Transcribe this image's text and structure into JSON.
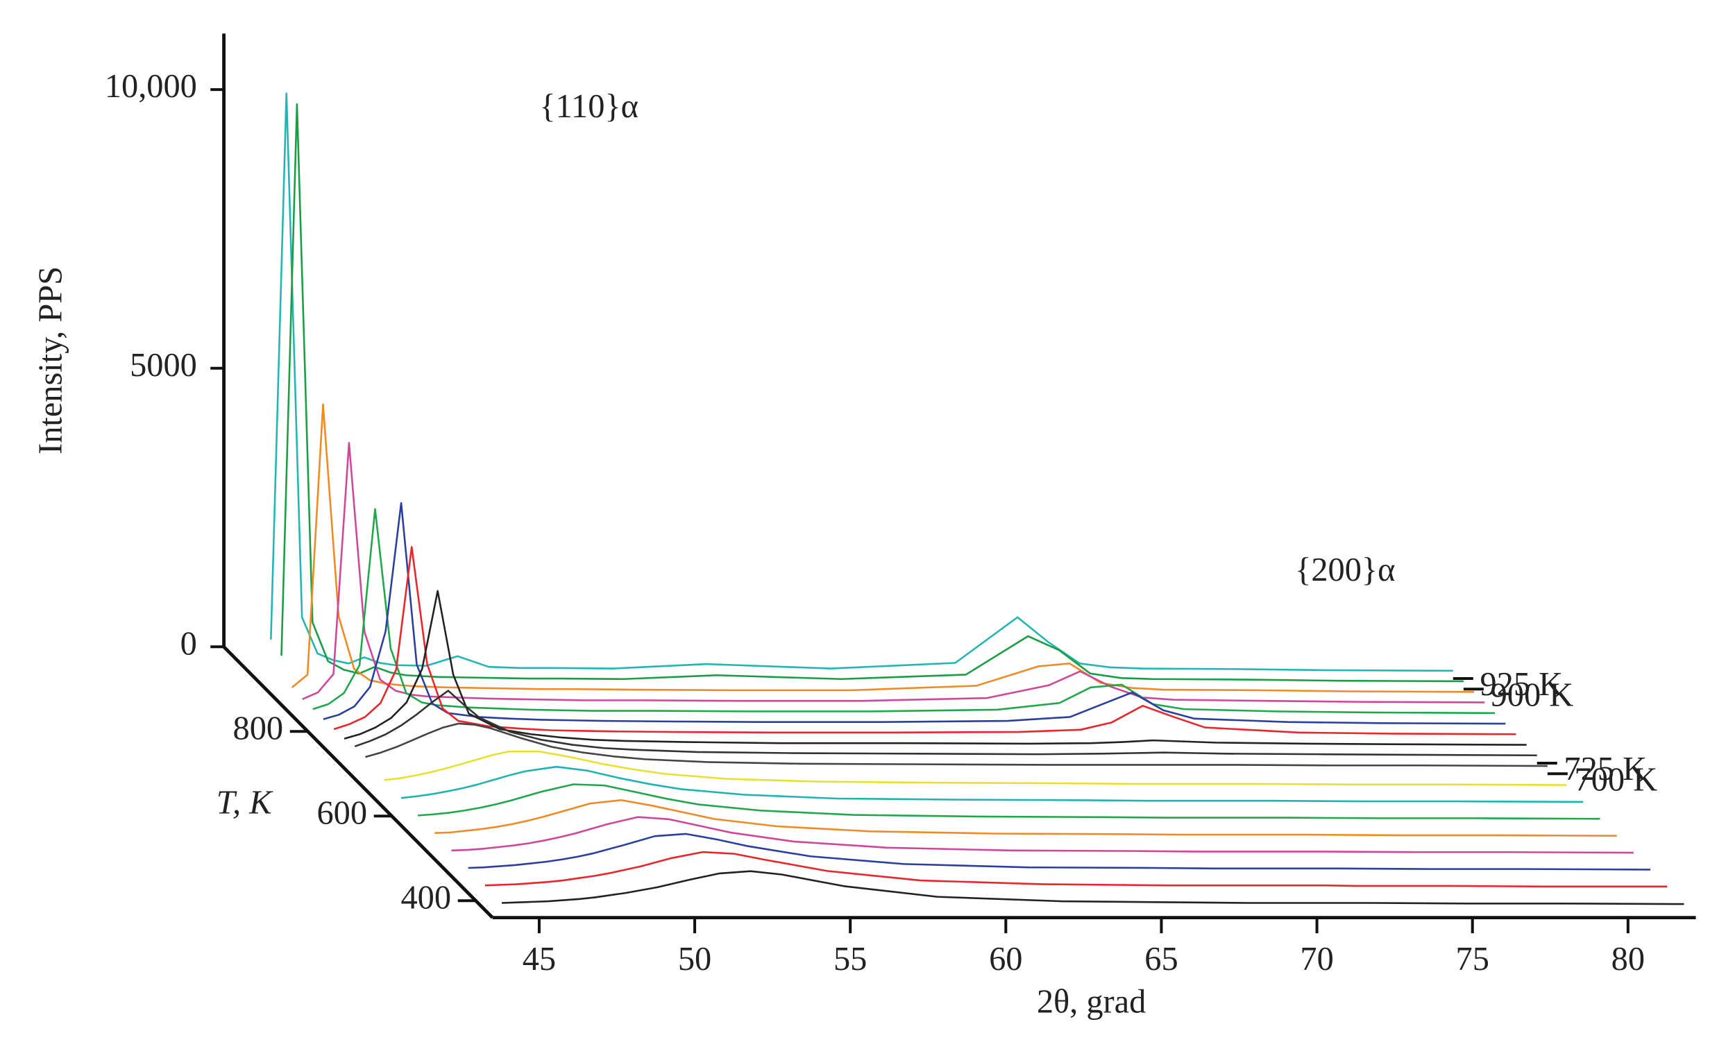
{
  "chart_data": {
    "type": "waterfall",
    "ylabel": "Intensity, PPS",
    "xlabel": "2θ, grad",
    "zlabel": "T, K",
    "annotations": [
      "{110}α",
      "{200}α"
    ],
    "xlim": [
      43.5,
      82
    ],
    "xticks": [
      45,
      50,
      55,
      60,
      65,
      70,
      75,
      80
    ],
    "ylim": [
      0,
      10800
    ],
    "yticks": [
      0,
      5000,
      {
        "value": 10000,
        "label": "10,000"
      }
    ],
    "zlim": [
      360,
      1000
    ],
    "zticks": [
      400,
      600,
      800
    ],
    "x": [
      44,
      44.5,
      45,
      45.5,
      46,
      46.5,
      47,
      47.5,
      48,
      49,
      50,
      51,
      52,
      53,
      55,
      58,
      62,
      66,
      68,
      69,
      70,
      71,
      72,
      75,
      78,
      82
    ],
    "series": [
      {
        "z": 925,
        "name": "925 K",
        "color": "#22b5b5",
        "values": [
          700,
          10500,
          1100,
          450,
          330,
          270,
          380,
          280,
          240,
          230,
          400,
          210,
          190,
          190,
          180,
          260,
          180,
          280,
          1100,
          650,
          270,
          200,
          180,
          170,
          150,
          140
        ]
      },
      {
        "z": 900,
        "name": "900 K",
        "color": "#1a9e45",
        "values": [
          600,
          10500,
          1200,
          500,
          350,
          280,
          400,
          300,
          250,
          220,
          210,
          200,
          190,
          190,
          180,
          250,
          180,
          260,
          950,
          700,
          280,
          200,
          180,
          170,
          150,
          140
        ]
      },
      {
        "z": 875,
        "color": "#f08a24",
        "values": [
          220,
          450,
          5300,
          1500,
          550,
          350,
          290,
          260,
          240,
          220,
          210,
          200,
          190,
          190,
          180,
          170,
          170,
          250,
          600,
          650,
          300,
          210,
          180,
          170,
          150,
          140
        ]
      },
      {
        "z": 850,
        "color": "#d0479a",
        "values": [
          200,
          320,
          650,
          4800,
          1400,
          550,
          350,
          280,
          250,
          230,
          210,
          200,
          190,
          180,
          180,
          170,
          170,
          220,
          450,
          700,
          420,
          230,
          190,
          170,
          150,
          140
        ]
      },
      {
        "z": 825,
        "color": "#1fa84a",
        "values": [
          210,
          300,
          500,
          1000,
          3800,
          1300,
          500,
          330,
          280,
          240,
          220,
          200,
          190,
          180,
          180,
          170,
          170,
          200,
          320,
          600,
          650,
          300,
          210,
          170,
          150,
          140
        ]
      },
      {
        "z": 800,
        "color": "#2a3f9e",
        "values": [
          220,
          300,
          450,
          800,
          1800,
          4100,
          1200,
          500,
          330,
          260,
          230,
          210,
          200,
          190,
          180,
          170,
          170,
          190,
          260,
          480,
          700,
          380,
          230,
          170,
          150,
          140
        ]
      },
      {
        "z": 775,
        "color": "#e8262b",
        "values": [
          230,
          320,
          450,
          700,
          1300,
          3500,
          1400,
          600,
          380,
          280,
          240,
          210,
          200,
          190,
          180,
          170,
          170,
          180,
          220,
          350,
          650,
          450,
          260,
          170,
          150,
          140
        ]
      },
      {
        "z": 750,
        "color": "#222222",
        "values": [
          250,
          330,
          450,
          620,
          900,
          1500,
          2900,
          1400,
          700,
          420,
          330,
          270,
          230,
          210,
          190,
          170,
          170,
          160,
          170,
          190,
          220,
          200,
          180,
          160,
          150,
          140
        ]
      },
      {
        "z": 725,
        "name": "725 K",
        "color": "#333333",
        "values": [
          300,
          400,
          520,
          680,
          880,
          1100,
          1300,
          1050,
          820,
          560,
          420,
          330,
          270,
          240,
          200,
          180,
          170,
          160,
          170,
          180,
          190,
          180,
          170,
          160,
          150,
          140
        ]
      },
      {
        "z": 700,
        "name": "700 K",
        "color": "#444444",
        "values": [
          300,
          380,
          480,
          600,
          720,
          830,
          900,
          880,
          820,
          640,
          480,
          380,
          310,
          260,
          210,
          180,
          170,
          160,
          160,
          160,
          160,
          160,
          160,
          150,
          150,
          140
        ]
      },
      {
        "z": 655,
        "color": "#e8e030",
        "values": [
          230,
          260,
          310,
          370,
          440,
          520,
          600,
          680,
          740,
          740,
          640,
          520,
          420,
          340,
          250,
          200,
          180,
          170,
          160,
          160,
          160,
          160,
          160,
          150,
          150,
          140
        ]
      },
      {
        "z": 615,
        "color": "#21b3b3",
        "values": [
          210,
          240,
          280,
          330,
          390,
          460,
          540,
          620,
          690,
          770,
          700,
          570,
          460,
          370,
          270,
          200,
          180,
          170,
          160,
          160,
          160,
          160,
          160,
          150,
          150,
          140
        ]
      },
      {
        "z": 575,
        "color": "#1fa84a",
        "values": [
          200,
          220,
          250,
          290,
          340,
          400,
          470,
          550,
          630,
          760,
          740,
          620,
          500,
          400,
          290,
          210,
          180,
          170,
          160,
          160,
          160,
          160,
          160,
          150,
          150,
          140
        ]
      },
      {
        "z": 535,
        "color": "#f08a24",
        "values": [
          190,
          200,
          230,
          260,
          300,
          350,
          410,
          480,
          560,
          720,
          780,
          680,
          560,
          440,
          310,
          220,
          180,
          170,
          160,
          160,
          160,
          160,
          160,
          150,
          150,
          140
        ]
      },
      {
        "z": 495,
        "color": "#d0479a",
        "values": [
          180,
          190,
          210,
          240,
          270,
          310,
          360,
          420,
          490,
          650,
          780,
          740,
          620,
          500,
          340,
          230,
          180,
          170,
          160,
          160,
          160,
          160,
          160,
          150,
          150,
          140
        ]
      },
      {
        "z": 455,
        "color": "#2a3f9e",
        "values": [
          170,
          180,
          200,
          220,
          250,
          280,
          320,
          370,
          430,
          580,
          740,
          780,
          680,
          560,
          380,
          240,
          180,
          170,
          160,
          160,
          160,
          160,
          160,
          150,
          150,
          140
        ]
      },
      {
        "z": 415,
        "color": "#e8262b",
        "values": [
          160,
          170,
          180,
          200,
          220,
          250,
          290,
          330,
          380,
          500,
          650,
          760,
          730,
          620,
          420,
          250,
          180,
          160,
          160,
          160,
          160,
          160,
          150,
          150,
          140,
          140
        ]
      },
      {
        "z": 375,
        "color": "#222222",
        "values": [
          150,
          160,
          170,
          180,
          200,
          220,
          250,
          290,
          330,
          430,
          560,
          680,
          720,
          660,
          450,
          260,
          180,
          160,
          150,
          150,
          150,
          150,
          150,
          140,
          140,
          130
        ]
      }
    ]
  }
}
